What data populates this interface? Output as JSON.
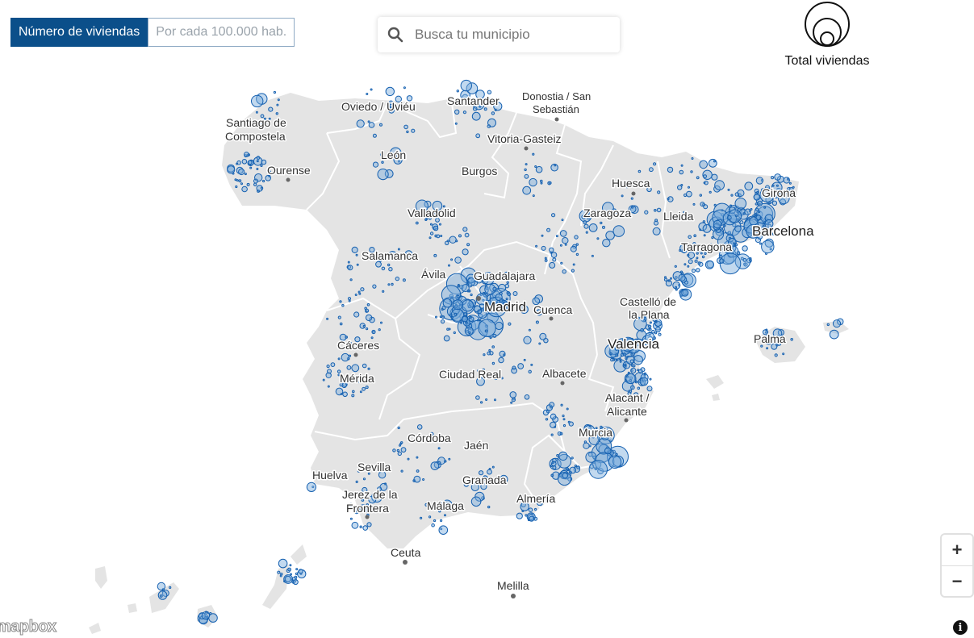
{
  "toggle": {
    "active_label": "Número de viviendas",
    "inactive_label": "Por cada 100.000 hab."
  },
  "search": {
    "placeholder": "Busca tu municipio"
  },
  "legend": {
    "label": "Total viviendas"
  },
  "zoom": {
    "in": "+",
    "out": "−"
  },
  "attribution": {
    "logo": "mapbox",
    "info": "i"
  },
  "colors": {
    "land": "#e4e4e4",
    "border": "#ffffff",
    "dot_fill": "rgba(120,170,220,0.45)",
    "dot_stroke": "#1560b0",
    "accent": "#0b4f8a"
  },
  "places": [
    {
      "name": "Oviedo / Uviéu"
    },
    {
      "name": "Santander"
    },
    {
      "name": "Donostia / San"
    },
    {
      "name": "Sebastián"
    },
    {
      "name": "Santiago de"
    },
    {
      "name": "Compostela"
    },
    {
      "name": "Vitoria-Gasteiz"
    },
    {
      "name": "León"
    },
    {
      "name": "Ourense"
    },
    {
      "name": "Burgos"
    },
    {
      "name": "Huesca"
    },
    {
      "name": "Girona"
    },
    {
      "name": "Valladolid"
    },
    {
      "name": "Zaragoza"
    },
    {
      "name": "Lleida"
    },
    {
      "name": "Barcelona"
    },
    {
      "name": "Tarragona"
    },
    {
      "name": "Salamanca"
    },
    {
      "name": "Ávila"
    },
    {
      "name": "Guadalajara"
    },
    {
      "name": "Madrid"
    },
    {
      "name": "Cuenca"
    },
    {
      "name": "Castelló de"
    },
    {
      "name": "la Plana"
    },
    {
      "name": "Palma"
    },
    {
      "name": "Cáceres"
    },
    {
      "name": "Valencia"
    },
    {
      "name": "Mérida"
    },
    {
      "name": "Ciudad Real"
    },
    {
      "name": "Albacete"
    },
    {
      "name": "Alacant /"
    },
    {
      "name": "Alicante"
    },
    {
      "name": "Córdoba"
    },
    {
      "name": "Murcia"
    },
    {
      "name": "Jaén"
    },
    {
      "name": "Huelva"
    },
    {
      "name": "Sevilla"
    },
    {
      "name": "Granada"
    },
    {
      "name": "Jerez de la"
    },
    {
      "name": "Frontera"
    },
    {
      "name": "Almería"
    },
    {
      "name": "Málaga"
    },
    {
      "name": "Ceuta"
    },
    {
      "name": "Melilla"
    }
  ]
}
